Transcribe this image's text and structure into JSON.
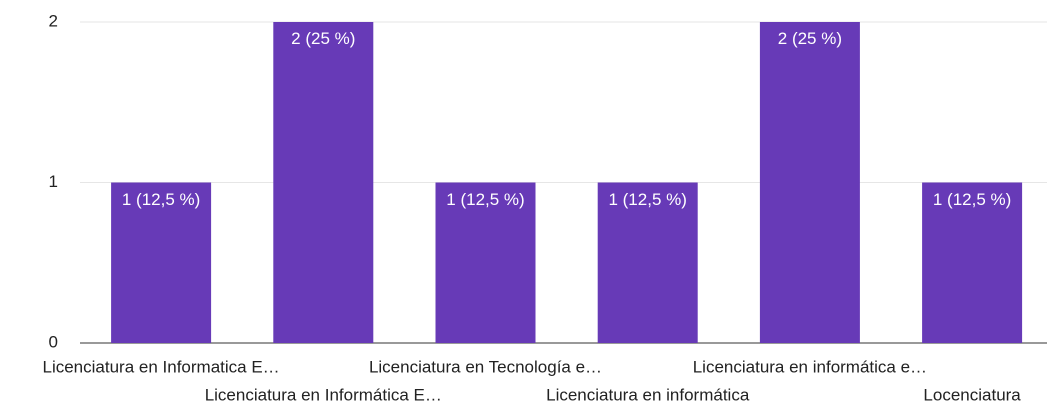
{
  "chart_data": {
    "type": "bar",
    "categories": [
      "Licenciatura en Informatica E…",
      "Licenciatura en Informática E…",
      "Licenciatura en Tecnología e…",
      "Licenciatura en informática",
      "Licenciatura en informática e…",
      "Locenciatura"
    ],
    "values": [
      1,
      2,
      1,
      1,
      2,
      1
    ],
    "value_labels": [
      "1 (12,5 %)",
      "2 (25 %)",
      "1 (12,5 %)",
      "1 (12,5 %)",
      "2 (25 %)",
      "1 (12,5 %)"
    ],
    "color": "#673ab7",
    "ylim": [
      0,
      2
    ],
    "yticks": [
      0,
      1,
      2
    ],
    "grid": true
  }
}
